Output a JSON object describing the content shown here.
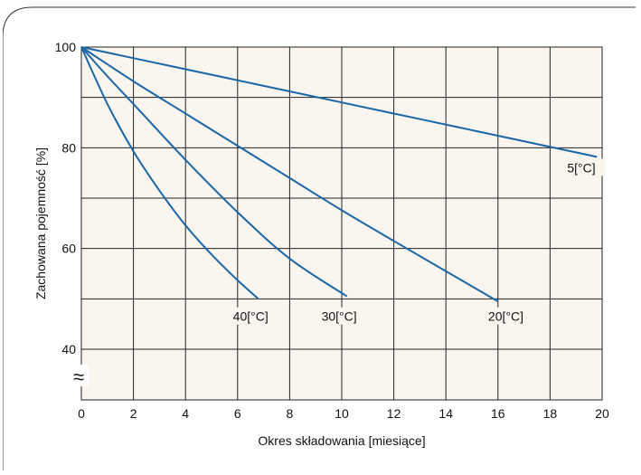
{
  "chart_data": {
    "type": "line",
    "title": "",
    "xlabel": "Okres składowania [miesiące]",
    "ylabel": "Zachowana pojemność [%]",
    "xlim": [
      0,
      20
    ],
    "ylim": [
      40,
      100
    ],
    "x_ticks": [
      0,
      2,
      4,
      6,
      8,
      10,
      12,
      14,
      16,
      18,
      20
    ],
    "y_ticks": [
      40,
      60,
      80,
      100
    ],
    "grid": true,
    "axis_break": "≈",
    "line_color": "#1a66a6",
    "plot_background": "#fbf5ef",
    "series": [
      {
        "name": "5[°C]",
        "x": [
          0,
          4,
          8,
          12,
          16,
          19.8
        ],
        "y": [
          100,
          95.6,
          91.2,
          86.8,
          82.4,
          78.2
        ]
      },
      {
        "name": "20[°C]",
        "x": [
          0,
          2,
          4,
          6,
          8,
          10,
          12,
          14,
          16
        ],
        "y": [
          100,
          93.2,
          86.8,
          80.4,
          74.0,
          67.6,
          61.5,
          55.5,
          49.5
        ]
      },
      {
        "name": "30[°C]",
        "x": [
          0,
          1,
          2,
          4,
          6,
          8,
          10.2
        ],
        "y": [
          100,
          94.2,
          88.7,
          77.6,
          67.2,
          58.0,
          50.5
        ]
      },
      {
        "name": "40[°C]",
        "x": [
          0,
          1,
          2,
          3,
          4,
          5,
          6,
          6.8
        ],
        "y": [
          100,
          88.7,
          79.3,
          71.5,
          64.6,
          58.8,
          53.7,
          50.0
        ]
      }
    ],
    "series_labels": [
      {
        "text": "5[°C]",
        "x": 19.2,
        "y": 75.5
      },
      {
        "text": "40[°C]",
        "x": 6.5,
        "y": 46.0
      },
      {
        "text": "30[°C]",
        "x": 9.9,
        "y": 46.0
      },
      {
        "text": "20[°C]",
        "x": 16.3,
        "y": 46.0
      }
    ]
  }
}
